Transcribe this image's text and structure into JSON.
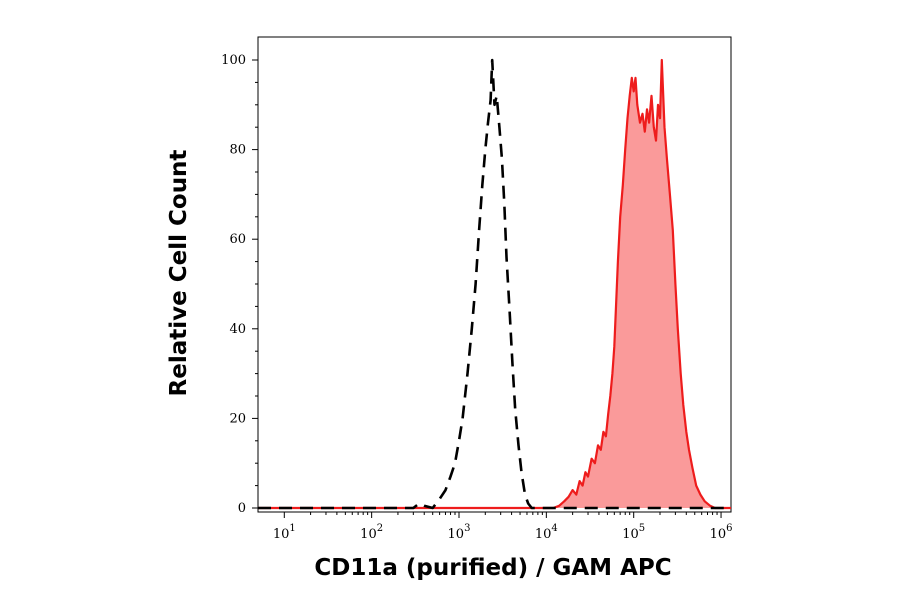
{
  "chart_data": {
    "type": "area",
    "title": "",
    "xlabel": "CD11a (purified) / GAM APC",
    "ylabel": "Relative Cell Count",
    "xscale": "log",
    "xlim": [
      5,
      1300000
    ],
    "ylim": [
      0,
      100
    ],
    "grid": false,
    "legend": "none",
    "x_ticks": [
      {
        "base": "10",
        "exp": "1",
        "value": 10
      },
      {
        "base": "10",
        "exp": "2",
        "value": 100
      },
      {
        "base": "10",
        "exp": "3",
        "value": 1000
      },
      {
        "base": "10",
        "exp": "4",
        "value": 10000
      },
      {
        "base": "10",
        "exp": "5",
        "value": 100000
      },
      {
        "base": "10",
        "exp": "6",
        "value": 1000000
      }
    ],
    "y_ticks": [
      {
        "label": "0",
        "value": 0
      },
      {
        "label": "20",
        "value": 20
      },
      {
        "label": "40",
        "value": 40
      },
      {
        "label": "60",
        "value": 60
      },
      {
        "label": "80",
        "value": 80
      },
      {
        "label": "100",
        "value": 100
      }
    ],
    "series": [
      {
        "style": "dashed-line",
        "color": "#000000",
        "points": [
          [
            5,
            0
          ],
          [
            300,
            0
          ],
          [
            350,
            1
          ],
          [
            400,
            0.5
          ],
          [
            500,
            0
          ],
          [
            600,
            2
          ],
          [
            700,
            4
          ],
          [
            800,
            7
          ],
          [
            900,
            10
          ],
          [
            1000,
            15
          ],
          [
            1100,
            20
          ],
          [
            1250,
            30
          ],
          [
            1400,
            40
          ],
          [
            1550,
            50
          ],
          [
            1700,
            62
          ],
          [
            1850,
            72
          ],
          [
            2000,
            80
          ],
          [
            2150,
            86
          ],
          [
            2300,
            91
          ],
          [
            2400,
            100
          ],
          [
            2550,
            90
          ],
          [
            2700,
            92
          ],
          [
            2900,
            85
          ],
          [
            3100,
            78
          ],
          [
            3300,
            68
          ],
          [
            3500,
            56
          ],
          [
            3800,
            44
          ],
          [
            4100,
            32
          ],
          [
            4400,
            22
          ],
          [
            4800,
            14
          ],
          [
            5200,
            8
          ],
          [
            5700,
            3
          ],
          [
            6200,
            1
          ],
          [
            6800,
            0
          ],
          [
            1300000,
            0
          ]
        ]
      },
      {
        "style": "filled",
        "color": "#ee1c1c",
        "fill": "#fa9a9a",
        "points": [
          [
            5,
            0
          ],
          [
            12000,
            0
          ],
          [
            14000,
            0.5
          ],
          [
            16000,
            1.5
          ],
          [
            18000,
            2.5
          ],
          [
            20000,
            4
          ],
          [
            22000,
            3
          ],
          [
            24000,
            6
          ],
          [
            26000,
            5
          ],
          [
            28000,
            8
          ],
          [
            30000,
            7
          ],
          [
            33000,
            11
          ],
          [
            36000,
            10
          ],
          [
            39000,
            14
          ],
          [
            42000,
            13
          ],
          [
            45000,
            17
          ],
          [
            48000,
            16
          ],
          [
            51000,
            21
          ],
          [
            54000,
            25
          ],
          [
            57000,
            30
          ],
          [
            60000,
            36
          ],
          [
            63000,
            46
          ],
          [
            66000,
            55
          ],
          [
            70000,
            65
          ],
          [
            75000,
            72
          ],
          [
            80000,
            80
          ],
          [
            85000,
            87
          ],
          [
            90000,
            92
          ],
          [
            95000,
            96
          ],
          [
            100000,
            93
          ],
          [
            105000,
            96
          ],
          [
            110000,
            90
          ],
          [
            118000,
            86
          ],
          [
            126000,
            88
          ],
          [
            134000,
            84
          ],
          [
            142000,
            89
          ],
          [
            150000,
            86
          ],
          [
            160000,
            92
          ],
          [
            170000,
            85
          ],
          [
            180000,
            82
          ],
          [
            190000,
            90
          ],
          [
            200000,
            87
          ],
          [
            210000,
            100
          ],
          [
            225000,
            85
          ],
          [
            240000,
            78
          ],
          [
            260000,
            70
          ],
          [
            280000,
            62
          ],
          [
            300000,
            50
          ],
          [
            320000,
            40
          ],
          [
            345000,
            30
          ],
          [
            370000,
            23
          ],
          [
            400000,
            17
          ],
          [
            430000,
            13
          ],
          [
            470000,
            9
          ],
          [
            520000,
            5
          ],
          [
            580000,
            3
          ],
          [
            650000,
            1.5
          ],
          [
            750000,
            0.5
          ],
          [
            850000,
            0
          ],
          [
            1300000,
            0
          ]
        ]
      }
    ]
  }
}
